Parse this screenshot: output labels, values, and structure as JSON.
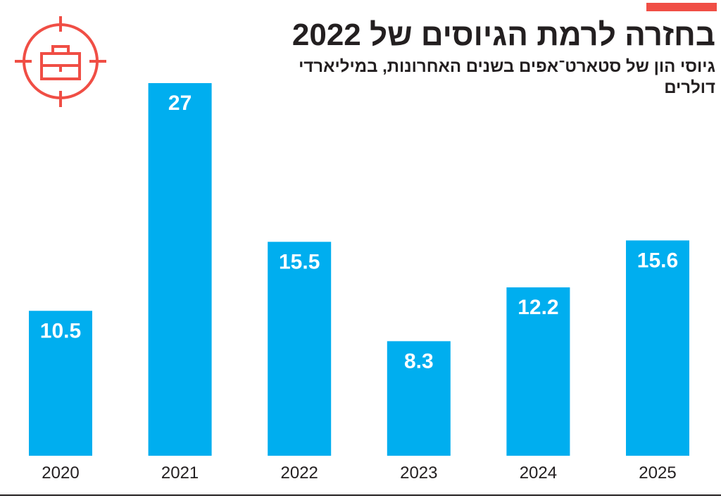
{
  "colors": {
    "bar": "#00aeef",
    "accent": "#f04e45",
    "text": "#231f20"
  },
  "icon": "target-briefcase-icon",
  "chart_data": {
    "type": "bar",
    "title": "בחזרה לרמת הגיוסים של 2022",
    "subtitle": "גיוסי הון של סטארט־אפים בשנים האחרונות, במיליארדי דולרים",
    "categories": [
      "2020",
      "2021",
      "2022",
      "2023",
      "2024",
      "2025"
    ],
    "values": [
      10.5,
      27,
      15.5,
      8.3,
      12.2,
      15.6
    ],
    "data_labels": [
      "10.5",
      "27",
      "15.5",
      "8.3",
      "12.2",
      "15.6"
    ],
    "xlabel": "",
    "ylabel": "",
    "ylim": [
      0,
      27
    ],
    "grid": false
  }
}
